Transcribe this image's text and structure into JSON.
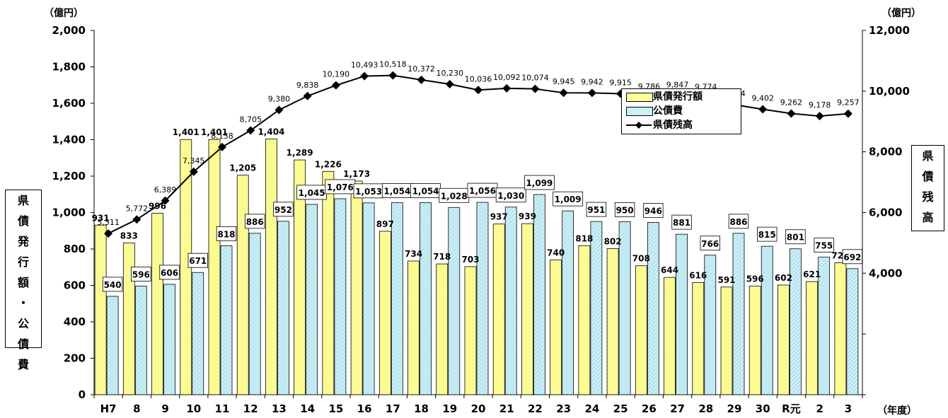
{
  "chart_data": {
    "type": "bar",
    "unit_left": "（億円）",
    "unit_right": "（億円）",
    "unit_x": "（年度）",
    "ylabel_left": "県債発行額・公債費",
    "ylabel_right": "県債残高",
    "ylim_left": [
      0,
      2000
    ],
    "ylim_right": [
      0,
      12000
    ],
    "yticks_left": [
      "0",
      "200",
      "400",
      "600",
      "800",
      "1,000",
      "1,200",
      "1,400",
      "1,600",
      "1,800",
      "2,000"
    ],
    "yticks_right": [
      "4,000",
      "6,000",
      "8,000",
      "10,000",
      "12,000"
    ],
    "categories": [
      "H7",
      "8",
      "9",
      "10",
      "11",
      "12",
      "13",
      "14",
      "15",
      "16",
      "17",
      "18",
      "19",
      "20",
      "21",
      "22",
      "23",
      "24",
      "25",
      "26",
      "27",
      "28",
      "29",
      "30",
      "R元",
      "2",
      "3"
    ],
    "series": [
      {
        "name": "県債発行額",
        "kind": "bar",
        "color": "#ffff99",
        "values": [
          931,
          833,
          996,
          1401,
          1401,
          1205,
          1404,
          1289,
          1226,
          1173,
          897,
          734,
          718,
          703,
          937,
          939,
          740,
          818,
          802,
          708,
          644,
          616,
          591,
          596,
          602,
          621,
          724
        ],
        "labels": [
          "931",
          "833",
          "996",
          "1,401",
          "1,401",
          "1,205",
          "1,404",
          "1,289",
          "1,226",
          "1,173",
          "897",
          "734",
          "718",
          "703",
          "937",
          "939",
          "740",
          "818",
          "802",
          "708",
          "644",
          "616",
          "591",
          "596",
          "602",
          "621",
          "724"
        ]
      },
      {
        "name": "公債費",
        "kind": "bar",
        "color": "#ccf0f8",
        "values": [
          540,
          596,
          606,
          671,
          818,
          886,
          952,
          1045,
          1076,
          1053,
          1054,
          1054,
          1028,
          1056,
          1030,
          1099,
          1009,
          951,
          950,
          946,
          881,
          766,
          886,
          815,
          801,
          755,
          692
        ],
        "labels": [
          "540",
          "596",
          "606",
          "671",
          "818",
          "886",
          "952",
          "1,045",
          "1,076",
          "1,053",
          "1,054",
          "1,054",
          "1,028",
          "1,056",
          "1,030",
          "1,099",
          "1,009",
          "951",
          "950",
          "946",
          "881",
          "766",
          "886",
          "815",
          "801",
          "755",
          "692"
        ]
      },
      {
        "name": "県債残高",
        "kind": "line",
        "axis": "right",
        "color": "#000000",
        "values": [
          5311,
          5772,
          6389,
          7345,
          8158,
          8705,
          9380,
          9838,
          10190,
          10493,
          10518,
          10372,
          10230,
          10036,
          10092,
          10074,
          9945,
          9942,
          9915,
          9786,
          9847,
          9774,
          9554,
          9402,
          9262,
          9178,
          9257
        ],
        "labels": [
          "5,311",
          "5,772",
          "6,389",
          "7,345",
          "8,158",
          "8,705",
          "9,380",
          "9,838",
          "10,190",
          "10,493",
          "10,518",
          "10,372",
          "10,230",
          "10,036",
          "10,092",
          "10,074",
          "9,945",
          "9,942",
          "9,915",
          "9,786",
          "9,847",
          "9,774",
          "9,554",
          "9,402",
          "9,262",
          "9,178",
          "9,257"
        ]
      }
    ],
    "legend": {
      "position": "top-right",
      "items": [
        "県債発行額",
        "公債費",
        "県債残高"
      ]
    },
    "grid": false
  }
}
